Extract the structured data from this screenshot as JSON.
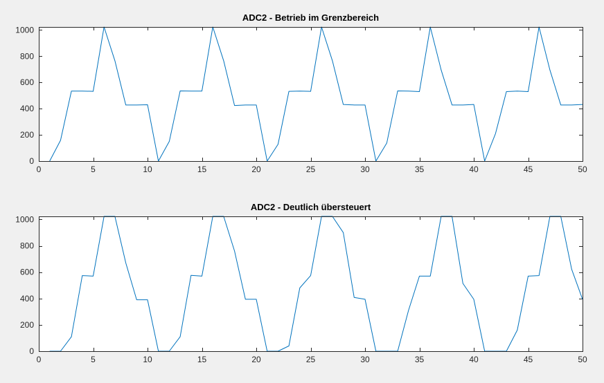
{
  "chart_data": [
    {
      "type": "line",
      "title": "ADC2 - Betrieb im Grenzbereich",
      "xlabel": "",
      "ylabel": "",
      "xlim": [
        0,
        50
      ],
      "ylim": [
        0,
        1023
      ],
      "xticks": [
        0,
        5,
        10,
        15,
        20,
        25,
        30,
        35,
        40,
        45,
        50
      ],
      "yticks": [
        0,
        200,
        400,
        600,
        800,
        1000
      ],
      "grid": false,
      "series": [
        {
          "color": "#0072bd",
          "x": [
            1,
            2,
            3,
            4,
            5,
            6,
            7,
            8,
            9,
            10,
            11,
            12,
            13,
            14,
            15,
            16,
            17,
            18,
            19,
            20,
            21,
            22,
            23,
            24,
            25,
            26,
            27,
            28,
            29,
            30,
            31,
            32,
            33,
            34,
            35,
            36,
            37,
            38,
            39,
            40,
            41,
            42,
            43,
            44,
            45,
            46,
            47,
            48,
            49,
            50
          ],
          "y": [
            0,
            158,
            534,
            534,
            532,
            1023,
            765,
            428,
            428,
            430,
            0,
            150,
            535,
            534,
            534,
            1023,
            765,
            424,
            428,
            428,
            0,
            128,
            532,
            534,
            532,
            1023,
            765,
            432,
            428,
            428,
            0,
            138,
            535,
            534,
            530,
            1023,
            695,
            428,
            428,
            432,
            0,
            210,
            530,
            534,
            530,
            1023,
            695,
            428,
            428,
            432
          ]
        }
      ]
    },
    {
      "type": "line",
      "title": "ADC2 - Deutlich übersteuert",
      "xlabel": "",
      "ylabel": "",
      "xlim": [
        0,
        50
      ],
      "ylim": [
        0,
        1023
      ],
      "xticks": [
        0,
        5,
        10,
        15,
        20,
        25,
        30,
        35,
        40,
        45,
        50
      ],
      "yticks": [
        0,
        200,
        400,
        600,
        800,
        1000
      ],
      "grid": false,
      "series": [
        {
          "color": "#0072bd",
          "x": [
            1,
            2,
            3,
            4,
            5,
            6,
            7,
            8,
            9,
            10,
            11,
            12,
            13,
            14,
            15,
            16,
            17,
            18,
            19,
            20,
            21,
            22,
            23,
            24,
            25,
            26,
            27,
            28,
            29,
            30,
            31,
            32,
            33,
            34,
            35,
            36,
            37,
            38,
            39,
            40,
            41,
            42,
            43,
            44,
            45,
            46,
            47,
            48,
            49,
            50
          ],
          "y": [
            0,
            0,
            110,
            574,
            570,
            1023,
            1023,
            670,
            390,
            390,
            0,
            0,
            110,
            576,
            570,
            1023,
            1023,
            760,
            394,
            394,
            0,
            0,
            40,
            480,
            574,
            1023,
            1023,
            900,
            408,
            394,
            0,
            0,
            0,
            310,
            570,
            570,
            1023,
            1023,
            514,
            394,
            0,
            0,
            0,
            160,
            570,
            574,
            1023,
            1023,
            622,
            394
          ]
        }
      ]
    }
  ]
}
